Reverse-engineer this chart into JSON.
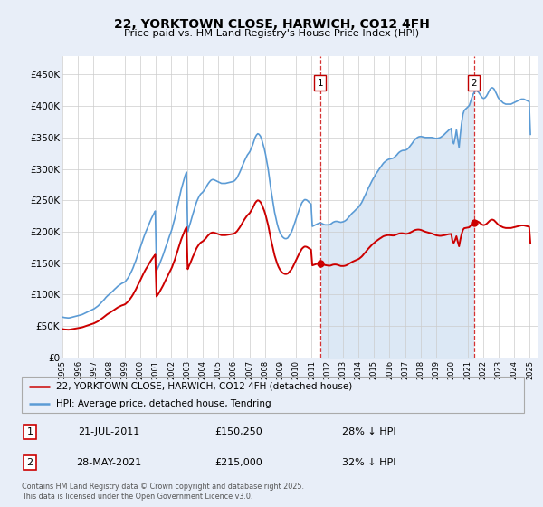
{
  "title": "22, YORKTOWN CLOSE, HARWICH, CO12 4FH",
  "subtitle": "Price paid vs. HM Land Registry's House Price Index (HPI)",
  "background_color": "#e8eef8",
  "plot_bg_color": "#ffffff",
  "hpi_color": "#5b9bd5",
  "hpi_fill_color": "#dce8f5",
  "price_color": "#cc0000",
  "dashed_color": "#cc0000",
  "grid_color": "#cccccc",
  "ylim": [
    0,
    480000
  ],
  "yticks": [
    0,
    50000,
    100000,
    150000,
    200000,
    250000,
    300000,
    350000,
    400000,
    450000
  ],
  "ytick_labels": [
    "£0",
    "£50K",
    "£100K",
    "£150K",
    "£200K",
    "£250K",
    "£300K",
    "£350K",
    "£400K",
    "£450K"
  ],
  "purchase1_date": 2011.55,
  "purchase1_price": 150250,
  "purchase1_label": "1",
  "purchase2_date": 2021.41,
  "purchase2_price": 215000,
  "purchase2_label": "2",
  "legend_line1": "22, YORKTOWN CLOSE, HARWICH, CO12 4FH (detached house)",
  "legend_line2": "HPI: Average price, detached house, Tendring",
  "table_rows": [
    {
      "num": "1",
      "date": "21-JUL-2011",
      "price": "£150,250",
      "hpi": "28% ↓ HPI"
    },
    {
      "num": "2",
      "date": "28-MAY-2021",
      "price": "£215,000",
      "hpi": "32% ↓ HPI"
    }
  ],
  "footer": "Contains HM Land Registry data © Crown copyright and database right 2025.\nThis data is licensed under the Open Government Licence v3.0.",
  "hpi_data": {
    "years": [
      1995.04,
      1995.12,
      1995.21,
      1995.29,
      1995.37,
      1995.46,
      1995.54,
      1995.62,
      1995.71,
      1995.79,
      1995.87,
      1995.96,
      1996.04,
      1996.12,
      1996.21,
      1996.29,
      1996.37,
      1996.46,
      1996.54,
      1996.62,
      1996.71,
      1996.79,
      1996.87,
      1996.96,
      1997.04,
      1997.12,
      1997.21,
      1997.29,
      1997.37,
      1997.46,
      1997.54,
      1997.62,
      1997.71,
      1997.79,
      1997.87,
      1997.96,
      1998.04,
      1998.12,
      1998.21,
      1998.29,
      1998.37,
      1998.46,
      1998.54,
      1998.62,
      1998.71,
      1998.79,
      1998.87,
      1998.96,
      1999.04,
      1999.12,
      1999.21,
      1999.29,
      1999.37,
      1999.46,
      1999.54,
      1999.62,
      1999.71,
      1999.79,
      1999.87,
      1999.96,
      2000.04,
      2000.12,
      2000.21,
      2000.29,
      2000.37,
      2000.46,
      2000.54,
      2000.62,
      2000.71,
      2000.79,
      2000.87,
      2000.96,
      2001.04,
      2001.12,
      2001.21,
      2001.29,
      2001.37,
      2001.46,
      2001.54,
      2001.62,
      2001.71,
      2001.79,
      2001.87,
      2001.96,
      2002.04,
      2002.12,
      2002.21,
      2002.29,
      2002.37,
      2002.46,
      2002.54,
      2002.62,
      2002.71,
      2002.79,
      2002.87,
      2002.96,
      2003.04,
      2003.12,
      2003.21,
      2003.29,
      2003.37,
      2003.46,
      2003.54,
      2003.62,
      2003.71,
      2003.79,
      2003.87,
      2003.96,
      2004.04,
      2004.12,
      2004.21,
      2004.29,
      2004.37,
      2004.46,
      2004.54,
      2004.62,
      2004.71,
      2004.79,
      2004.87,
      2004.96,
      2005.04,
      2005.12,
      2005.21,
      2005.29,
      2005.37,
      2005.46,
      2005.54,
      2005.62,
      2005.71,
      2005.79,
      2005.87,
      2005.96,
      2006.04,
      2006.12,
      2006.21,
      2006.29,
      2006.37,
      2006.46,
      2006.54,
      2006.62,
      2006.71,
      2006.79,
      2006.87,
      2006.96,
      2007.04,
      2007.12,
      2007.21,
      2007.29,
      2007.37,
      2007.46,
      2007.54,
      2007.62,
      2007.71,
      2007.79,
      2007.87,
      2007.96,
      2008.04,
      2008.12,
      2008.21,
      2008.29,
      2008.37,
      2008.46,
      2008.54,
      2008.62,
      2008.71,
      2008.79,
      2008.87,
      2008.96,
      2009.04,
      2009.12,
      2009.21,
      2009.29,
      2009.37,
      2009.46,
      2009.54,
      2009.62,
      2009.71,
      2009.79,
      2009.87,
      2009.96,
      2010.04,
      2010.12,
      2010.21,
      2010.29,
      2010.37,
      2010.46,
      2010.54,
      2010.62,
      2010.71,
      2010.79,
      2010.87,
      2010.96,
      2011.04,
      2011.12,
      2011.21,
      2011.29,
      2011.37,
      2011.46,
      2011.54,
      2011.62,
      2011.71,
      2011.79,
      2011.87,
      2011.96,
      2012.04,
      2012.12,
      2012.21,
      2012.29,
      2012.37,
      2012.46,
      2012.54,
      2012.62,
      2012.71,
      2012.79,
      2012.87,
      2012.96,
      2013.04,
      2013.12,
      2013.21,
      2013.29,
      2013.37,
      2013.46,
      2013.54,
      2013.62,
      2013.71,
      2013.79,
      2013.87,
      2013.96,
      2014.04,
      2014.12,
      2014.21,
      2014.29,
      2014.37,
      2014.46,
      2014.54,
      2014.62,
      2014.71,
      2014.79,
      2014.87,
      2014.96,
      2015.04,
      2015.12,
      2015.21,
      2015.29,
      2015.37,
      2015.46,
      2015.54,
      2015.62,
      2015.71,
      2015.79,
      2015.87,
      2015.96,
      2016.04,
      2016.12,
      2016.21,
      2016.29,
      2016.37,
      2016.46,
      2016.54,
      2016.62,
      2016.71,
      2016.79,
      2016.87,
      2016.96,
      2017.04,
      2017.12,
      2017.21,
      2017.29,
      2017.37,
      2017.46,
      2017.54,
      2017.62,
      2017.71,
      2017.79,
      2017.87,
      2017.96,
      2018.04,
      2018.12,
      2018.21,
      2018.29,
      2018.37,
      2018.46,
      2018.54,
      2018.62,
      2018.71,
      2018.79,
      2018.87,
      2018.96,
      2019.04,
      2019.12,
      2019.21,
      2019.29,
      2019.37,
      2019.46,
      2019.54,
      2019.62,
      2019.71,
      2019.79,
      2019.87,
      2019.96,
      2020.04,
      2020.12,
      2020.21,
      2020.29,
      2020.37,
      2020.46,
      2020.54,
      2020.62,
      2020.71,
      2020.79,
      2020.87,
      2020.96,
      2021.04,
      2021.12,
      2021.21,
      2021.29,
      2021.37,
      2021.46,
      2021.54,
      2021.62,
      2021.71,
      2021.79,
      2021.87,
      2021.96,
      2022.04,
      2022.12,
      2022.21,
      2022.29,
      2022.37,
      2022.46,
      2022.54,
      2022.62,
      2022.71,
      2022.79,
      2022.87,
      2022.96,
      2023.04,
      2023.12,
      2023.21,
      2023.29,
      2023.37,
      2023.46,
      2023.54,
      2023.62,
      2023.71,
      2023.79,
      2023.87,
      2023.96,
      2024.04,
      2024.12,
      2024.21,
      2024.29,
      2024.37,
      2024.46,
      2024.54,
      2024.62,
      2024.71,
      2024.79,
      2024.87,
      2024.96,
      2025.04
    ],
    "values": [
      64000,
      63500,
      63200,
      63000,
      62800,
      63000,
      63500,
      64000,
      64500,
      65000,
      65500,
      66000,
      66500,
      67000,
      67800,
      68500,
      69500,
      70500,
      71500,
      72500,
      73500,
      74500,
      75500,
      76500,
      77500,
      79000,
      80500,
      82000,
      84000,
      86500,
      88500,
      90500,
      93000,
      95500,
      97500,
      99500,
      101500,
      103000,
      105000,
      107000,
      109000,
      111000,
      113000,
      114500,
      116000,
      117500,
      118500,
      119500,
      121000,
      123500,
      126500,
      130000,
      134000,
      138500,
      143000,
      148500,
      154000,
      160000,
      166000,
      172000,
      178000,
      184000,
      190500,
      196000,
      201000,
      206000,
      211000,
      216000,
      221000,
      225000,
      229000,
      233000,
      138000,
      142000,
      147000,
      152000,
      157000,
      163000,
      169000,
      175000,
      181000,
      187000,
      193000,
      199000,
      205000,
      213000,
      221000,
      230000,
      239000,
      249000,
      258000,
      267000,
      275000,
      282000,
      289000,
      295000,
      200000,
      207000,
      214000,
      221000,
      228000,
      235000,
      242000,
      248000,
      253000,
      257000,
      260000,
      262000,
      264000,
      267000,
      270000,
      274000,
      277000,
      280000,
      282000,
      283000,
      283000,
      282000,
      281000,
      280000,
      279000,
      278000,
      277000,
      277000,
      277000,
      277000,
      277500,
      278000,
      278500,
      279000,
      279500,
      280000,
      281000,
      283000,
      286000,
      290000,
      294000,
      299000,
      304000,
      309000,
      314000,
      318000,
      322000,
      325000,
      328000,
      333000,
      338000,
      344000,
      350000,
      354000,
      356000,
      355000,
      352000,
      347000,
      340000,
      332000,
      323000,
      312000,
      299000,
      284000,
      270000,
      256000,
      243000,
      231000,
      221000,
      212000,
      205000,
      199000,
      195000,
      192000,
      190000,
      189000,
      189000,
      190000,
      193000,
      196000,
      200000,
      205000,
      211000,
      218000,
      224000,
      230000,
      236000,
      241000,
      246000,
      249000,
      251000,
      251000,
      250000,
      248000,
      246000,
      244000,
      208500,
      209500,
      210500,
      211500,
      212500,
      213500,
      214000,
      213500,
      212500,
      211500,
      211000,
      211000,
      211000,
      211000,
      212000,
      213500,
      215000,
      216000,
      216500,
      216500,
      216000,
      215500,
      215000,
      215500,
      216000,
      217000,
      218500,
      220500,
      223000,
      225500,
      228000,
      230000,
      232000,
      234000,
      236000,
      238000,
      240000,
      243000,
      246500,
      250500,
      255000,
      259500,
      264000,
      268500,
      273000,
      277000,
      281000,
      285000,
      288000,
      292000,
      295000,
      298000,
      301000,
      304000,
      307000,
      309500,
      311500,
      313000,
      314500,
      315500,
      316000,
      316500,
      317000,
      318000,
      320000,
      322000,
      324500,
      326500,
      328000,
      329000,
      329500,
      329500,
      330000,
      331000,
      333000,
      335500,
      338000,
      341000,
      344000,
      346500,
      348500,
      350000,
      351000,
      351500,
      351500,
      351000,
      350500,
      350000,
      350000,
      350000,
      350000,
      350000,
      350000,
      349500,
      349000,
      348500,
      348500,
      349000,
      349500,
      350500,
      352000,
      353500,
      355500,
      357500,
      359500,
      361500,
      363000,
      364500,
      344000,
      340000,
      350000,
      362000,
      348000,
      334000,
      355000,
      372000,
      387000,
      393000,
      395000,
      397000,
      399000,
      401000,
      408000,
      414000,
      419000,
      423000,
      424500,
      424000,
      422000,
      419000,
      416000,
      413000,
      412000,
      413000,
      415500,
      419000,
      423000,
      427000,
      429000,
      429000,
      427000,
      423000,
      419000,
      414000,
      411000,
      409000,
      407000,
      405000,
      404000,
      403000,
      403000,
      403000,
      403000,
      403000,
      404000,
      405000,
      406000,
      407000,
      408000,
      409000,
      410000,
      411000,
      411000,
      411000,
      410000,
      409000,
      408000,
      407000,
      355000
    ]
  }
}
